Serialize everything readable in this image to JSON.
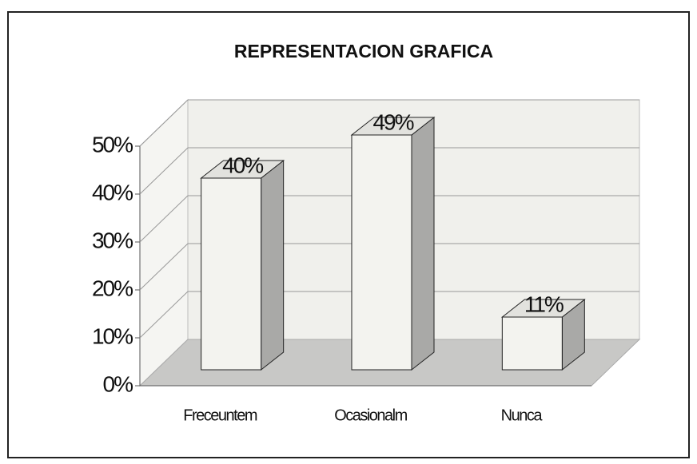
{
  "chart_data": {
    "type": "bar3d",
    "title": "REPRESENTACION GRAFICA",
    "categories": [
      "Freceuntem",
      "Ocasionalm",
      "Nunca"
    ],
    "values": [
      40,
      49,
      11
    ],
    "value_labels": [
      "40%",
      "49%",
      "11%"
    ],
    "color": "#f3f3ef",
    "ylim": [
      0,
      50
    ],
    "yticks": [
      {
        "value": 0,
        "label": "0%"
      },
      {
        "value": 10,
        "label": "10%"
      },
      {
        "value": 20,
        "label": "20%"
      },
      {
        "value": 30,
        "label": "30%"
      },
      {
        "value": 40,
        "label": "40%"
      },
      {
        "value": 50,
        "label": "50%"
      }
    ],
    "grid": true
  }
}
